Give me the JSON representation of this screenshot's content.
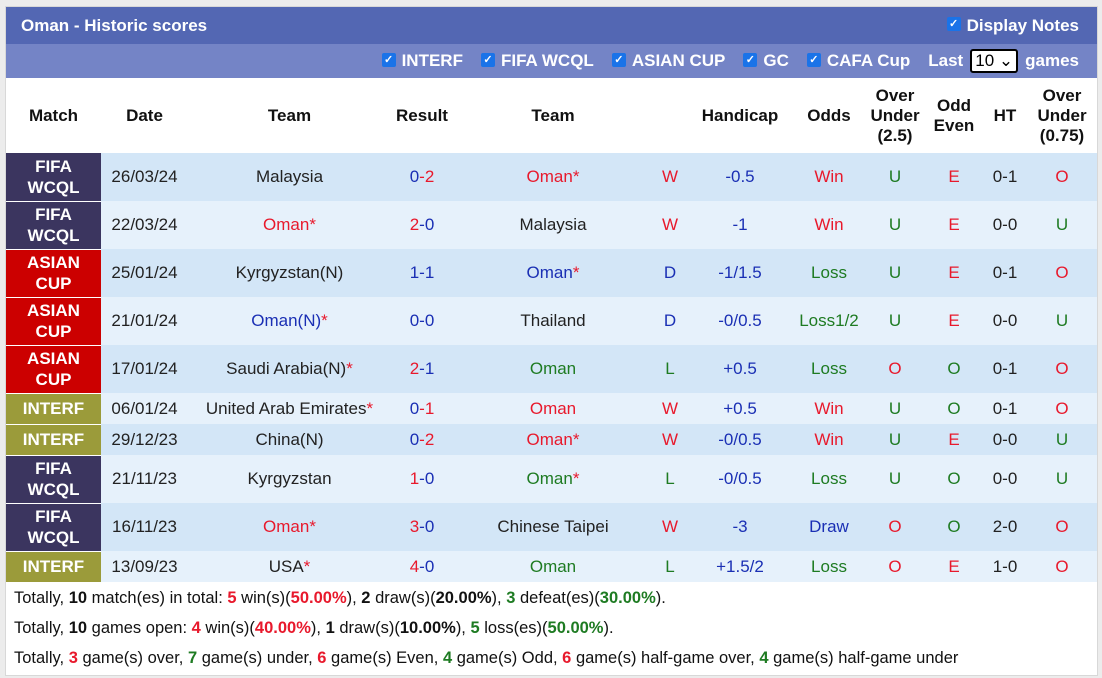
{
  "title": "Oman - Historic scores",
  "display_notes": {
    "label": "Display Notes",
    "checked": true
  },
  "filters": [
    {
      "label": "INTERF",
      "checked": true
    },
    {
      "label": "FIFA WCQL",
      "checked": true
    },
    {
      "label": "ASIAN CUP",
      "checked": true
    },
    {
      "label": "GC",
      "checked": true
    },
    {
      "label": "CAFA Cup",
      "checked": true
    }
  ],
  "last_label": "Last",
  "last_value": "10",
  "games_label": "games",
  "colors": {
    "header": "#5367b3",
    "subheader": "#7484c6",
    "FIFA WCQL": "#3b355f",
    "ASIAN CUP": "#cc0000",
    "INTERF": "#9b9b3a",
    "win": "#e8192c",
    "draw": "#1a2fb4",
    "loss": "#1e7b22"
  },
  "columns": [
    "Match",
    "Date",
    "Team",
    "Result",
    "Team",
    "",
    "Handicap",
    "Odds",
    "Over Under (2.5)",
    "Odd Even",
    "HT",
    "Over Under (0.75)"
  ],
  "rows": [
    {
      "match": "FIFA WCQL",
      "date": "26/03/24",
      "home": "Malaysia",
      "home_c": "",
      "home_star": false,
      "sh": "0",
      "shc": "blue",
      "sa": "2",
      "sac": "red",
      "away": "Oman",
      "away_c": "red",
      "away_star": true,
      "wl": "W",
      "wlc": "red",
      "hcp": "-0.5",
      "odds": "Win",
      "oddsc": "red",
      "ou": "U",
      "ouc": "green",
      "oe": "E",
      "oec": "red",
      "ht": "0-1",
      "ou2": "O",
      "ou2c": "red"
    },
    {
      "match": "FIFA WCQL",
      "date": "22/03/24",
      "home": "Oman",
      "home_c": "red",
      "home_star": true,
      "sh": "2",
      "shc": "red",
      "sa": "0",
      "sac": "blue",
      "away": "Malaysia",
      "away_c": "",
      "away_star": false,
      "wl": "W",
      "wlc": "red",
      "hcp": "-1",
      "odds": "Win",
      "oddsc": "red",
      "ou": "U",
      "ouc": "green",
      "oe": "E",
      "oec": "red",
      "ht": "0-0",
      "ou2": "U",
      "ou2c": "green"
    },
    {
      "match": "ASIAN CUP",
      "date": "25/01/24",
      "home": "Kyrgyzstan(N)",
      "home_c": "",
      "home_star": false,
      "sh": "1",
      "shc": "blue",
      "sa": "1",
      "sac": "blue",
      "away": "Oman",
      "away_c": "blue",
      "away_star": true,
      "wl": "D",
      "wlc": "blue",
      "hcp": "-1/1.5",
      "odds": "Loss",
      "oddsc": "green",
      "ou": "U",
      "ouc": "green",
      "oe": "E",
      "oec": "red",
      "ht": "0-1",
      "ou2": "O",
      "ou2c": "red"
    },
    {
      "match": "ASIAN CUP",
      "date": "21/01/24",
      "home": "Oman(N)",
      "home_c": "blue",
      "home_star": true,
      "sh": "0",
      "shc": "blue",
      "sa": "0",
      "sac": "blue",
      "away": "Thailand",
      "away_c": "",
      "away_star": false,
      "wl": "D",
      "wlc": "blue",
      "hcp": "-0/0.5",
      "odds": "Loss1/2",
      "oddsc": "green",
      "ou": "U",
      "ouc": "green",
      "oe": "E",
      "oec": "red",
      "ht": "0-0",
      "ou2": "U",
      "ou2c": "green"
    },
    {
      "match": "ASIAN CUP",
      "date": "17/01/24",
      "home": "Saudi Arabia(N)",
      "home_c": "",
      "home_star": true,
      "sh": "2",
      "shc": "red",
      "sa": "1",
      "sac": "blue",
      "away": "Oman",
      "away_c": "green",
      "away_star": false,
      "wl": "L",
      "wlc": "green",
      "hcp": "+0.5",
      "odds": "Loss",
      "oddsc": "green",
      "ou": "O",
      "ouc": "red",
      "oe": "O",
      "oec": "green",
      "ht": "0-1",
      "ou2": "O",
      "ou2c": "red"
    },
    {
      "match": "INTERF",
      "date": "06/01/24",
      "home": "United Arab Emirates",
      "home_c": "",
      "home_star": true,
      "sh": "0",
      "shc": "blue",
      "sa": "1",
      "sac": "red",
      "away": "Oman",
      "away_c": "red",
      "away_star": false,
      "wl": "W",
      "wlc": "red",
      "hcp": "+0.5",
      "odds": "Win",
      "oddsc": "red",
      "ou": "U",
      "ouc": "green",
      "oe": "O",
      "oec": "green",
      "ht": "0-1",
      "ou2": "O",
      "ou2c": "red"
    },
    {
      "match": "INTERF",
      "date": "29/12/23",
      "home": "China(N)",
      "home_c": "",
      "home_star": false,
      "sh": "0",
      "shc": "blue",
      "sa": "2",
      "sac": "red",
      "away": "Oman",
      "away_c": "red",
      "away_star": true,
      "wl": "W",
      "wlc": "red",
      "hcp": "-0/0.5",
      "odds": "Win",
      "oddsc": "red",
      "ou": "U",
      "ouc": "green",
      "oe": "E",
      "oec": "red",
      "ht": "0-0",
      "ou2": "U",
      "ou2c": "green"
    },
    {
      "match": "FIFA WCQL",
      "date": "21/11/23",
      "home": "Kyrgyzstan",
      "home_c": "",
      "home_star": false,
      "sh": "1",
      "shc": "red",
      "sa": "0",
      "sac": "blue",
      "away": "Oman",
      "away_c": "green",
      "away_star": true,
      "wl": "L",
      "wlc": "green",
      "hcp": "-0/0.5",
      "odds": "Loss",
      "oddsc": "green",
      "ou": "U",
      "ouc": "green",
      "oe": "O",
      "oec": "green",
      "ht": "0-0",
      "ou2": "U",
      "ou2c": "green"
    },
    {
      "match": "FIFA WCQL",
      "date": "16/11/23",
      "home": "Oman",
      "home_c": "red",
      "home_star": true,
      "sh": "3",
      "shc": "red",
      "sa": "0",
      "sac": "blue",
      "away": "Chinese Taipei",
      "away_c": "",
      "away_star": false,
      "wl": "W",
      "wlc": "red",
      "hcp": "-3",
      "odds": "Draw",
      "oddsc": "blue",
      "ou": "O",
      "ouc": "red",
      "oe": "O",
      "oec": "green",
      "ht": "2-0",
      "ou2": "O",
      "ou2c": "red"
    },
    {
      "match": "INTERF",
      "date": "13/09/23",
      "home": "USA",
      "home_c": "",
      "home_star": true,
      "sh": "4",
      "shc": "red",
      "sa": "0",
      "sac": "blue",
      "away": "Oman",
      "away_c": "green",
      "away_star": false,
      "wl": "L",
      "wlc": "green",
      "hcp": "+1.5/2",
      "odds": "Loss",
      "oddsc": "green",
      "ou": "O",
      "ouc": "red",
      "oe": "E",
      "oec": "red",
      "ht": "1-0",
      "ou2": "O",
      "ou2c": "red"
    }
  ],
  "summary": [
    [
      [
        "Totally, ",
        ""
      ],
      [
        "10",
        "b"
      ],
      [
        " match(es) in total: ",
        ""
      ],
      [
        "5",
        "red b"
      ],
      [
        " win(s)(",
        ""
      ],
      [
        "50.00%",
        "red b"
      ],
      [
        "), ",
        ""
      ],
      [
        "2",
        "blue b"
      ],
      [
        " draw(s)(",
        ""
      ],
      [
        "20.00%",
        "blue b"
      ],
      [
        "), ",
        ""
      ],
      [
        "3",
        "green b"
      ],
      [
        " defeat(es)(",
        ""
      ],
      [
        "30.00%",
        "green b"
      ],
      [
        ").",
        ""
      ]
    ],
    [
      [
        "Totally, ",
        ""
      ],
      [
        "10",
        "b"
      ],
      [
        " games open: ",
        ""
      ],
      [
        "4",
        "red b"
      ],
      [
        " win(s)(",
        ""
      ],
      [
        "40.00%",
        "red b"
      ],
      [
        "), ",
        ""
      ],
      [
        "1",
        "blue b"
      ],
      [
        " draw(s)(",
        ""
      ],
      [
        "10.00%",
        "blue b"
      ],
      [
        "), ",
        ""
      ],
      [
        "5",
        "green b"
      ],
      [
        " loss(es)(",
        ""
      ],
      [
        "50.00%",
        "green b"
      ],
      [
        ").",
        ""
      ]
    ],
    [
      [
        "Totally, ",
        ""
      ],
      [
        "3",
        "red b"
      ],
      [
        " game(s) over, ",
        ""
      ],
      [
        "7",
        "green b"
      ],
      [
        " game(s) under, ",
        ""
      ],
      [
        "6",
        "red b"
      ],
      [
        " game(s) Even, ",
        ""
      ],
      [
        "4",
        "green b"
      ],
      [
        " game(s) Odd, ",
        ""
      ],
      [
        "6",
        "red b"
      ],
      [
        " game(s) half-game over, ",
        ""
      ],
      [
        "4",
        "green b"
      ],
      [
        " game(s) half-game under",
        ""
      ]
    ]
  ]
}
